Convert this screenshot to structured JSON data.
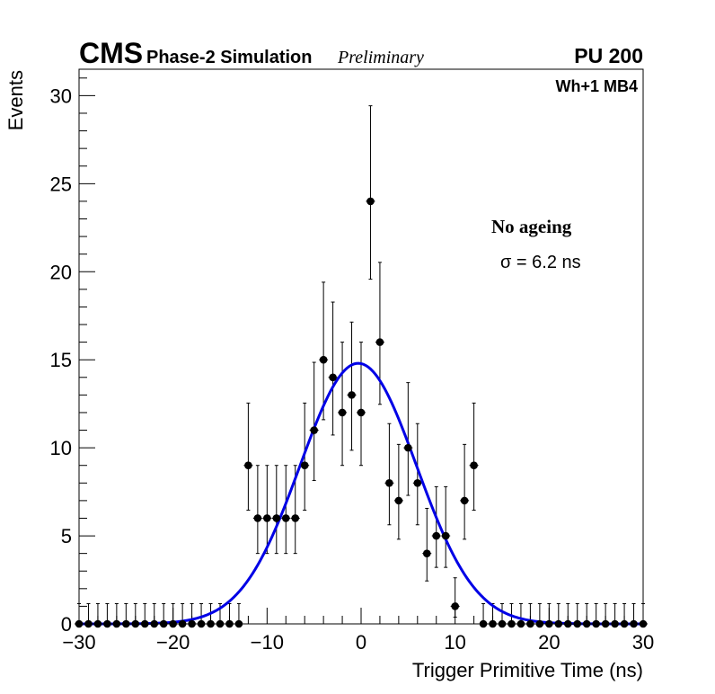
{
  "chart_data": {
    "type": "scatter",
    "title": "",
    "header": {
      "experiment": "CMS",
      "simulation": "Phase-2 Simulation",
      "status": "Preliminary",
      "pileup": "PU 200",
      "chamber": "Wh+1 MB4"
    },
    "xlabel": "Trigger Primitive Time (ns)",
    "ylabel": "Events",
    "xlim": [
      -30,
      30
    ],
    "ylim": [
      0,
      31.5
    ],
    "x_ticks": [
      -30,
      -20,
      -10,
      0,
      10,
      20,
      30
    ],
    "x_tick_labels": [
      "−30",
      "−20",
      "−10",
      "0",
      "10",
      "20",
      "30"
    ],
    "y_ticks": [
      0,
      5,
      10,
      15,
      20,
      25,
      30
    ],
    "y_tick_labels": [
      "0",
      "5",
      "10",
      "15",
      "20",
      "25",
      "30"
    ],
    "annotation_label": "No ageing",
    "annotation_fit": "σ = 6.2 ns",
    "series": [
      {
        "name": "Simulation",
        "style": "markers",
        "x": [
          -30,
          -29,
          -28,
          -27,
          -26,
          -25,
          -24,
          -23,
          -22,
          -21,
          -20,
          -19,
          -18,
          -17,
          -16,
          -15,
          -14,
          -13,
          -12,
          -11,
          -10,
          -9,
          -8,
          -7,
          -6,
          -5,
          -4,
          -3,
          -2,
          -1,
          0,
          1,
          2,
          3,
          4,
          5,
          6,
          7,
          8,
          9,
          10,
          11,
          12,
          13,
          14,
          15,
          16,
          17,
          18,
          19,
          20,
          21,
          22,
          23,
          24,
          25,
          26,
          27,
          28,
          29,
          30
        ],
        "y": [
          0,
          0,
          0,
          0,
          0,
          0,
          0,
          0,
          0,
          0,
          0,
          0,
          0,
          0,
          0,
          0,
          0,
          0,
          9,
          6,
          6,
          6,
          6,
          6,
          9,
          11,
          15,
          14,
          12,
          13,
          12,
          24,
          16,
          8,
          7,
          10,
          8,
          4,
          5,
          5,
          1,
          7,
          9,
          0,
          0,
          0,
          0,
          0,
          0,
          0,
          0,
          0,
          0,
          0,
          0,
          0,
          0,
          0,
          0,
          0,
          0
        ]
      },
      {
        "name": "Gaussian fit",
        "style": "line",
        "mean": -0.3,
        "sigma": 6.2,
        "amplitude": 14.8
      }
    ]
  },
  "colors": {
    "markers": "#000000",
    "fit_line": "#0000e6",
    "axes": "#000000"
  }
}
